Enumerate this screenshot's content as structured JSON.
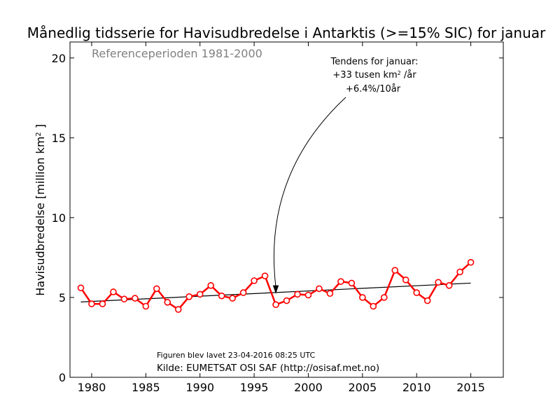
{
  "chart_data": {
    "type": "line",
    "title": "Månedlig tidsserie for Havisudbredelse i Antarktis (>=15% SIC) for januar",
    "subtitle": "Referenceperioden 1981-2000",
    "ylabel_main": "Havisudbredelse [million km",
    "ylabel_sup": "2",
    "ylabel_end": " ]",
    "xlim": [
      1978,
      2018
    ],
    "ylim": [
      0,
      21
    ],
    "xticks": [
      1980,
      1985,
      1990,
      1995,
      2000,
      2005,
      2010,
      2015
    ],
    "yticks": [
      0,
      5,
      10,
      15,
      20
    ],
    "grid": false,
    "series": [
      {
        "color": "#ff0000",
        "x": [
          1979,
          1980,
          1981,
          1982,
          1983,
          1984,
          1985,
          1986,
          1987,
          1988,
          1989,
          1990,
          1991,
          1992,
          1993,
          1994,
          1995,
          1996,
          1997,
          1998,
          1999,
          2000,
          2001,
          2002,
          2003,
          2004,
          2005,
          2006,
          2007,
          2008,
          2009,
          2010,
          2011,
          2012,
          2013,
          2014,
          2015
        ],
        "y": [
          5.6,
          4.6,
          4.6,
          5.35,
          4.9,
          4.95,
          4.45,
          5.55,
          4.7,
          4.25,
          5.05,
          5.2,
          5.75,
          5.1,
          4.95,
          5.3,
          6.05,
          6.35,
          4.55,
          4.8,
          5.2,
          5.15,
          5.55,
          5.25,
          6.0,
          5.9,
          5.0,
          4.45,
          5.0,
          6.7,
          6.1,
          5.3,
          4.8,
          5.95,
          5.75,
          6.6,
          7.2
        ]
      }
    ],
    "trend": {
      "color": "#000000",
      "x": [
        1979,
        2015
      ],
      "y": [
        4.72,
        5.9
      ]
    },
    "annotation": {
      "line1": "Tendens for januar:",
      "line2_a": "+33 tusen km",
      "line2_sup": "2",
      "line2_b": " /år",
      "line3": "+6.4%/10år",
      "arrow_target": {
        "x": 1997,
        "y": 5.3
      }
    },
    "footer_generated": "Figuren blev lavet 23-04-2016 08:25 UTC",
    "footer_source": "Kilde: EUMETSAT OSI SAF (http://osisaf.met.no)"
  }
}
